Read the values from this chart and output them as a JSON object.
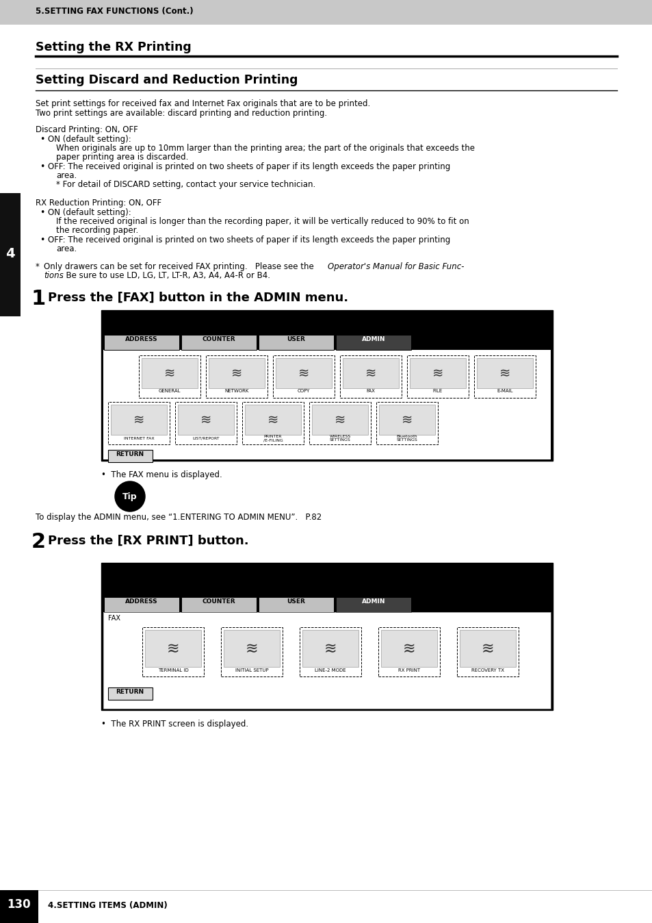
{
  "header_text": "5.SETTING FAX FUNCTIONS (Cont.)",
  "header_bg": "#c8c8c8",
  "page_bg": "#ffffff",
  "section1_title": "Setting the RX Printing",
  "section2_title": "Setting Discard and Reduction Printing",
  "body_line1": "Set print settings for received fax and Internet Fax originals that are to be printed.",
  "body_line2": "Two print settings are available: discard printing and reduction printing.",
  "discard_header": "Discard Printing: ON, OFF",
  "d_b1_label": "ON (default setting):",
  "d_b1_line1": "When originals are up to 10mm larger than the printing area; the part of the originals that exceeds the",
  "d_b1_line2": "paper printing area is discarded.",
  "d_b2_label": "OFF: The received original is printed on two sheets of paper if its length exceeds the paper printing",
  "d_b2_line1": "area.",
  "d_b2_line2": "* For detail of DISCARD setting, contact your service technician.",
  "rx_header": "RX Reduction Printing: ON, OFF",
  "r_b1_label": "ON (default setting):",
  "r_b1_line1": "If the received original is longer than the recording paper, it will be vertically reduced to 90% to fit on",
  "r_b1_line2": "the recording paper.",
  "r_b2_label": "OFF: The received original is printed on two sheets of paper if its length exceeds the paper printing",
  "r_b2_line1": "area.",
  "note_pre": "Only drawers can be set for received FAX printing.   Please see the ",
  "note_italic1": "Operator's Manual for Basic Func-",
  "note_italic2": "tions",
  "note_post": ". Be sure to use LD, LG, LT, LT-R, A3, A4, A4-R or B4.",
  "step1_text": "Press the [FAX] button in the ADMIN menu.",
  "step1_bullet": "The FAX menu is displayed.",
  "tip_text": "To display the ADMIN menu, see “1.ENTERING TO ADMIN MENU”.   P.82",
  "step2_text": "Press the [RX PRINT] button.",
  "step2_bullet": "The RX PRINT screen is displayed.",
  "footer_num": "130",
  "footer_text": "4.SETTING ITEMS (ADMIN)",
  "sidebar_num": "4"
}
